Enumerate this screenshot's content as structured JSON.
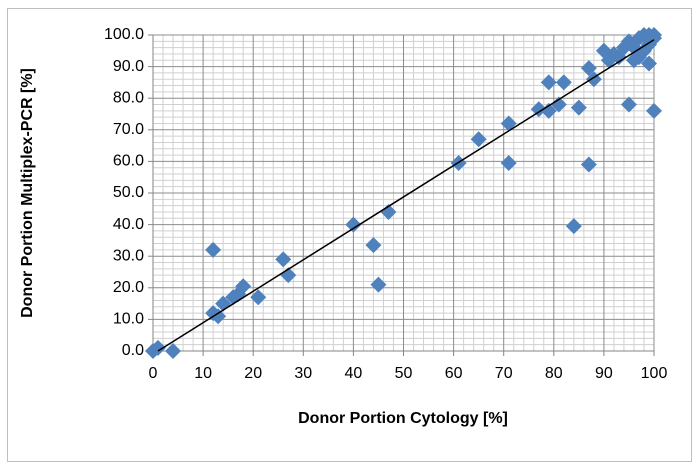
{
  "chart_data": {
    "type": "scatter",
    "xlabel": "Donor Portion Cytology [%]",
    "ylabel": "Donor Portion Multiplex-PCR [%]",
    "color": "#4f81bd",
    "grid": true,
    "minor_grid": true,
    "xlim": [
      0,
      100
    ],
    "ylim": [
      0,
      100
    ],
    "xticks": [
      0,
      10,
      20,
      30,
      40,
      50,
      60,
      70,
      80,
      90,
      100
    ],
    "yticks": [
      {
        "value": 0,
        "label": "0.0"
      },
      {
        "value": 10,
        "label": "10.0"
      },
      {
        "value": 20,
        "label": "20.0"
      },
      {
        "value": 30,
        "label": "30.0"
      },
      {
        "value": 40,
        "label": "40.0"
      },
      {
        "value": 50,
        "label": "50.0"
      },
      {
        "value": 60,
        "label": "60.0"
      },
      {
        "value": 70,
        "label": "70.0"
      },
      {
        "value": 80,
        "label": "80.0"
      },
      {
        "value": 90,
        "label": "90.0"
      },
      {
        "value": 100,
        "label": "100.0"
      }
    ],
    "x": [
      0,
      1,
      4,
      12,
      12,
      13,
      14,
      16,
      17,
      18,
      21,
      26,
      27,
      40,
      44,
      45,
      47,
      61,
      65,
      71,
      71,
      77,
      79,
      79,
      81,
      82,
      84,
      85,
      87,
      87,
      88,
      90,
      91,
      92,
      93,
      94,
      95,
      95,
      96,
      97,
      98,
      99,
      99,
      100,
      100,
      96,
      98,
      97,
      100,
      99
    ],
    "values": [
      0,
      1,
      0,
      32,
      12,
      11,
      15,
      17,
      18,
      20.5,
      17,
      29,
      24,
      40,
      33.5,
      21,
      44,
      59.5,
      67,
      72,
      59.5,
      76.5,
      85,
      76,
      78,
      85,
      39.5,
      77,
      59,
      89.5,
      86,
      95,
      92,
      94,
      93,
      96,
      98,
      78,
      92,
      99,
      100,
      100,
      91,
      99,
      76,
      96,
      95,
      93,
      100,
      97
    ],
    "trendline": {
      "x": [
        1,
        100
      ],
      "y": [
        0,
        98.5
      ]
    }
  }
}
